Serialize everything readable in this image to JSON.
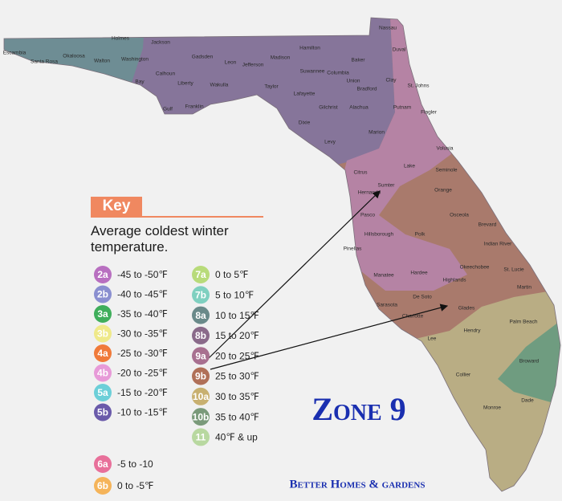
{
  "map": {
    "counties": [
      "Escambia",
      "Santa Rosa",
      "Okaloosa",
      "Holmes",
      "Walton",
      "Washington",
      "Jackson",
      "Gadsden",
      "Calhoun",
      "Bay",
      "Liberty",
      "Gulf",
      "Franklin",
      "Wakulla",
      "Leon",
      "Jefferson",
      "Madison",
      "Hamilton",
      "Suwannee",
      "Columbia",
      "Baker",
      "Nassau",
      "Duval",
      "Union",
      "Bradford",
      "Clay",
      "St. Johns",
      "Taylor",
      "Lafayette",
      "Gilchrist",
      "Alachua",
      "Putnam",
      "Flagler",
      "Dixie",
      "Levy",
      "Marion",
      "Volusia",
      "Citrus",
      "Lake",
      "Seminole",
      "Sumter",
      "Hernando",
      "Orange",
      "Pasco",
      "Osceola",
      "Brevard",
      "Hillsborough",
      "Polk",
      "Pinellas",
      "Indian River",
      "Okeechobee",
      "St. Lucie",
      "Manatee",
      "Hardee",
      "Highlands",
      "Martin",
      "De Soto",
      "Sarasota",
      "Charlotte",
      "Glades",
      "Palm Beach",
      "Lee",
      "Hendry",
      "Broward",
      "Collier",
      "Monroe",
      "Dade"
    ]
  },
  "key": {
    "heading": "Key",
    "description": "Average coldest winter temperature.",
    "zones": [
      {
        "zone": "2a",
        "range": "-45 to -50℉",
        "color": "#b86fc0"
      },
      {
        "zone": "2b",
        "range": "-40 to -45℉",
        "color": "#8a8fd0"
      },
      {
        "zone": "3a",
        "range": "-35 to -40℉",
        "color": "#3fae5b"
      },
      {
        "zone": "3b",
        "range": "-30 to -35℉",
        "color": "#efe98a"
      },
      {
        "zone": "4a",
        "range": "-25 to -30℉",
        "color": "#f07a3a"
      },
      {
        "zone": "4b",
        "range": "-20 to -25℉",
        "color": "#e79ad8"
      },
      {
        "zone": "5a",
        "range": "-15 to -20℉",
        "color": "#6ccfd8"
      },
      {
        "zone": "5b",
        "range": "-10 to -15℉",
        "color": "#6a5aaa"
      },
      {
        "zone": "6a",
        "range": "-5 to -10",
        "color": "#e8709a"
      },
      {
        "zone": "6b",
        "range": "0 to -5℉",
        "color": "#f5b45a"
      },
      {
        "zone": "7a",
        "range": "0 to 5℉",
        "color": "#b8db7a"
      },
      {
        "zone": "7b",
        "range": "5 to 10℉",
        "color": "#7fd0c0"
      },
      {
        "zone": "8a",
        "range": "10 to 15℉",
        "color": "#6a8a8a"
      },
      {
        "zone": "8b",
        "range": "15 to 20℉",
        "color": "#8a6a8a"
      },
      {
        "zone": "9a",
        "range": "20 to 25℉",
        "color": "#a87090"
      },
      {
        "zone": "9b",
        "range": "25 to 30℉",
        "color": "#b07058"
      },
      {
        "zone": "10a",
        "range": "30 to 35℉",
        "color": "#c8b070"
      },
      {
        "zone": "10b",
        "range": "35 to 40℉",
        "color": "#7a9a7a"
      },
      {
        "zone": "11",
        "range": "40℉ & up",
        "color": "#b8d8a0"
      }
    ]
  },
  "title": "Zone 9",
  "footer": "Better Homes & gardens"
}
